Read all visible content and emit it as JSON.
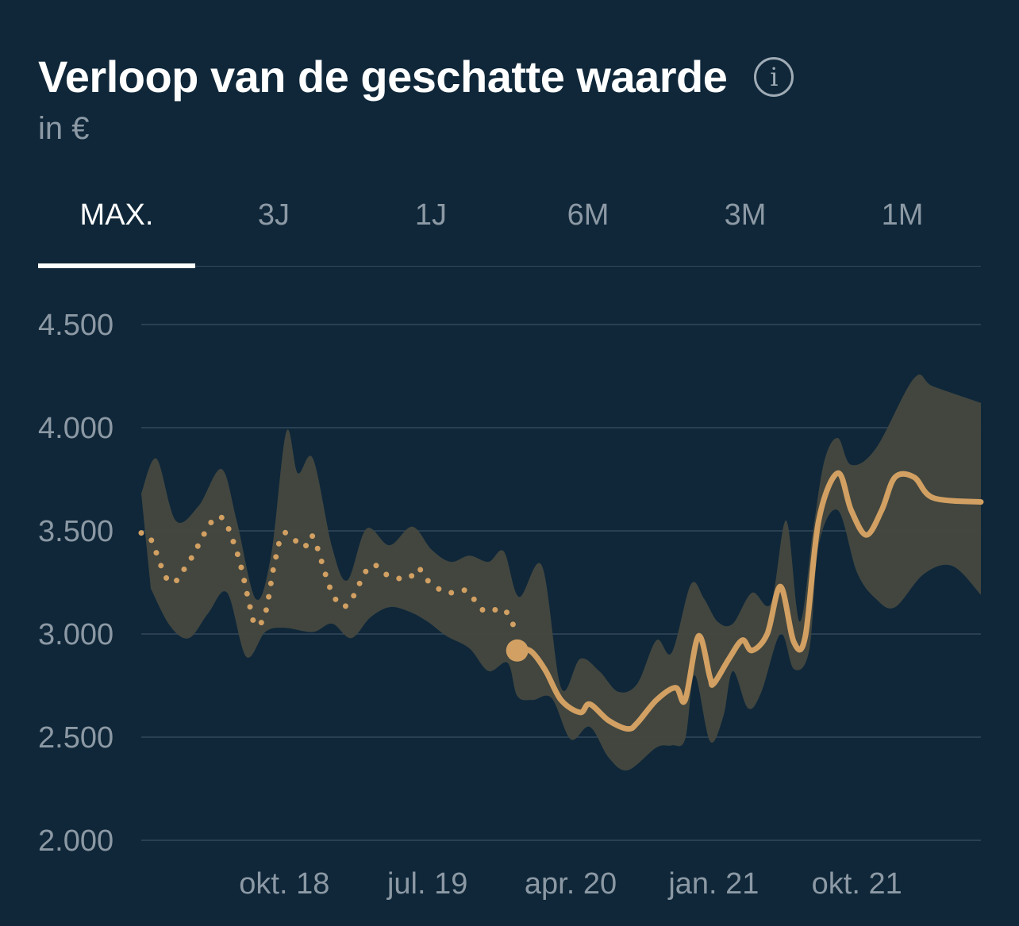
{
  "header": {
    "title": "Verloop van de geschatte waarde",
    "info_icon": "info-circle-icon",
    "info_glyph": "i",
    "subtitle": "in €"
  },
  "tabs": [
    {
      "label": "MAX.",
      "active": true
    },
    {
      "label": "3J",
      "active": false
    },
    {
      "label": "1J",
      "active": false
    },
    {
      "label": "6M",
      "active": false
    },
    {
      "label": "3M",
      "active": false
    },
    {
      "label": "1M",
      "active": false
    }
  ],
  "colors": {
    "background": "#0f2739",
    "line": "#d2a062",
    "band": "#46483f",
    "grid": "#34495a",
    "text_muted": "#8c99a4"
  },
  "chart_data": {
    "type": "line",
    "ylim": [
      2000,
      4500
    ],
    "yticks": [
      4500,
      4000,
      3500,
      3000,
      2500,
      2000
    ],
    "ytick_labels": [
      "4.500",
      "4.000",
      "3.500",
      "3.000",
      "2.500",
      "2.000"
    ],
    "xlim": [
      2018.0,
      2022.4
    ],
    "xticks": [
      2018.75,
      2019.5,
      2020.25,
      2021.0,
      2021.75
    ],
    "xtick_labels": [
      "okt. 18",
      "jul. 19",
      "apr. 20",
      "jan. 21",
      "okt. 21"
    ],
    "grid": true,
    "series": [
      {
        "style": "dotted",
        "points": [
          [
            2018.0,
            3490
          ],
          [
            2018.05,
            3460
          ],
          [
            2018.15,
            3250
          ],
          [
            2018.25,
            3350
          ],
          [
            2018.4,
            3570
          ],
          [
            2018.5,
            3400
          ],
          [
            2018.57,
            3130
          ],
          [
            2018.6,
            3040
          ],
          [
            2018.65,
            3100
          ],
          [
            2018.7,
            3350
          ],
          [
            2018.75,
            3490
          ],
          [
            2018.85,
            3420
          ],
          [
            2018.9,
            3470
          ],
          [
            2019.0,
            3200
          ],
          [
            2019.08,
            3140
          ],
          [
            2019.2,
            3330
          ],
          [
            2019.3,
            3280
          ],
          [
            2019.4,
            3270
          ],
          [
            2019.45,
            3320
          ],
          [
            2019.5,
            3260
          ],
          [
            2019.6,
            3200
          ],
          [
            2019.7,
            3210
          ],
          [
            2019.8,
            3110
          ],
          [
            2019.9,
            3120
          ],
          [
            2019.97,
            3000
          ]
        ]
      },
      {
        "style": "solid",
        "points": [
          [
            2020.0,
            2930
          ],
          [
            2020.05,
            2910
          ],
          [
            2020.12,
            2820
          ],
          [
            2020.2,
            2680
          ],
          [
            2020.3,
            2620
          ],
          [
            2020.35,
            2660
          ],
          [
            2020.45,
            2580
          ],
          [
            2020.55,
            2540
          ],
          [
            2020.6,
            2570
          ],
          [
            2020.7,
            2680
          ],
          [
            2020.8,
            2740
          ],
          [
            2020.85,
            2680
          ],
          [
            2020.92,
            2990
          ],
          [
            2020.98,
            2790
          ],
          [
            2021.0,
            2760
          ],
          [
            2021.08,
            2880
          ],
          [
            2021.15,
            2970
          ],
          [
            2021.2,
            2920
          ],
          [
            2021.28,
            3000
          ],
          [
            2021.35,
            3230
          ],
          [
            2021.42,
            2960
          ],
          [
            2021.48,
            2990
          ],
          [
            2021.55,
            3550
          ],
          [
            2021.65,
            3780
          ],
          [
            2021.72,
            3600
          ],
          [
            2021.8,
            3480
          ],
          [
            2021.88,
            3600
          ],
          [
            2021.95,
            3760
          ],
          [
            2022.05,
            3760
          ],
          [
            2022.15,
            3660
          ],
          [
            2022.4,
            3640
          ]
        ]
      }
    ],
    "marker": {
      "x": 2019.97,
      "y": 2920
    },
    "band": {
      "upper": [
        [
          2018.0,
          3680
        ],
        [
          2018.08,
          3850
        ],
        [
          2018.18,
          3550
        ],
        [
          2018.3,
          3620
        ],
        [
          2018.42,
          3800
        ],
        [
          2018.5,
          3550
        ],
        [
          2018.6,
          3170
        ],
        [
          2018.68,
          3380
        ],
        [
          2018.76,
          3980
        ],
        [
          2018.82,
          3780
        ],
        [
          2018.9,
          3850
        ],
        [
          2019.0,
          3420
        ],
        [
          2019.08,
          3260
        ],
        [
          2019.18,
          3510
        ],
        [
          2019.3,
          3430
        ],
        [
          2019.42,
          3520
        ],
        [
          2019.52,
          3410
        ],
        [
          2019.62,
          3350
        ],
        [
          2019.72,
          3380
        ],
        [
          2019.82,
          3350
        ],
        [
          2019.9,
          3400
        ],
        [
          2019.98,
          3180
        ],
        [
          2020.1,
          3330
        ],
        [
          2020.2,
          2740
        ],
        [
          2020.3,
          2880
        ],
        [
          2020.4,
          2820
        ],
        [
          2020.5,
          2720
        ],
        [
          2020.6,
          2760
        ],
        [
          2020.7,
          2970
        ],
        [
          2020.78,
          2910
        ],
        [
          2020.88,
          3240
        ],
        [
          2020.95,
          3170
        ],
        [
          2021.02,
          3060
        ],
        [
          2021.1,
          3050
        ],
        [
          2021.2,
          3200
        ],
        [
          2021.3,
          3150
        ],
        [
          2021.38,
          3550
        ],
        [
          2021.45,
          3060
        ],
        [
          2021.52,
          3500
        ],
        [
          2021.58,
          3840
        ],
        [
          2021.65,
          3950
        ],
        [
          2021.72,
          3820
        ],
        [
          2021.85,
          3900
        ],
        [
          2022.05,
          4240
        ],
        [
          2022.15,
          4200
        ],
        [
          2022.4,
          4120
        ]
      ],
      "lower": [
        [
          2022.4,
          3190
        ],
        [
          2022.25,
          3330
        ],
        [
          2022.1,
          3290
        ],
        [
          2021.95,
          3130
        ],
        [
          2021.85,
          3170
        ],
        [
          2021.75,
          3300
        ],
        [
          2021.65,
          3600
        ],
        [
          2021.55,
          3430
        ],
        [
          2021.5,
          2920
        ],
        [
          2021.42,
          2830
        ],
        [
          2021.35,
          3000
        ],
        [
          2021.25,
          2720
        ],
        [
          2021.18,
          2640
        ],
        [
          2021.1,
          2820
        ],
        [
          2021.05,
          2600
        ],
        [
          2020.98,
          2480
        ],
        [
          2020.9,
          2800
        ],
        [
          2020.85,
          2490
        ],
        [
          2020.78,
          2460
        ],
        [
          2020.7,
          2450
        ],
        [
          2020.55,
          2340
        ],
        [
          2020.45,
          2400
        ],
        [
          2020.35,
          2550
        ],
        [
          2020.25,
          2490
        ],
        [
          2020.15,
          2690
        ],
        [
          2020.05,
          2680
        ],
        [
          2019.97,
          2700
        ],
        [
          2019.92,
          2860
        ],
        [
          2019.82,
          2820
        ],
        [
          2019.72,
          2930
        ],
        [
          2019.6,
          2990
        ],
        [
          2019.5,
          3060
        ],
        [
          2019.4,
          3110
        ],
        [
          2019.3,
          3130
        ],
        [
          2019.2,
          3080
        ],
        [
          2019.1,
          2980
        ],
        [
          2019.0,
          3050
        ],
        [
          2018.9,
          3010
        ],
        [
          2018.75,
          3030
        ],
        [
          2018.65,
          3010
        ],
        [
          2018.55,
          2890
        ],
        [
          2018.45,
          3200
        ],
        [
          2018.35,
          3100
        ],
        [
          2018.25,
          2980
        ],
        [
          2018.15,
          3040
        ],
        [
          2018.05,
          3220
        ]
      ]
    }
  }
}
